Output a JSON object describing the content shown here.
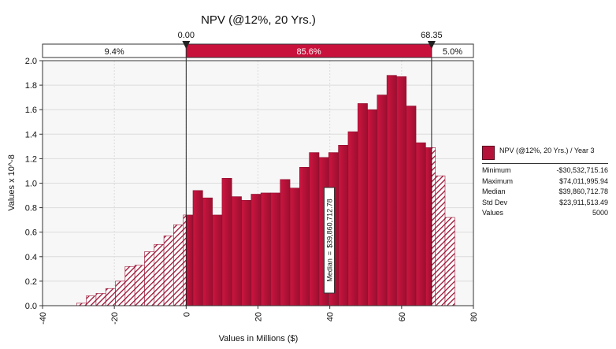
{
  "chart_data": {
    "type": "bar",
    "title": "NPV (@12%, 20 Yrs.)",
    "xlabel": "Values in Millions ($)",
    "ylabel": "Values x 10^-8",
    "xlim": [
      -40,
      80
    ],
    "ylim": [
      0,
      2.0
    ],
    "x_ticks": [
      "-40",
      "-20",
      "0",
      "20",
      "40",
      "60",
      "80"
    ],
    "y_ticks": [
      "0.0",
      "0.2",
      "0.4",
      "0.6",
      "0.8",
      "1.0",
      "1.2",
      "1.4",
      "1.6",
      "1.8",
      "2.0"
    ],
    "bin_width": 2.7,
    "bin_edges_start": -30.5,
    "values": [
      0.02,
      0.08,
      0.1,
      0.14,
      0.2,
      0.32,
      0.33,
      0.44,
      0.5,
      0.57,
      0.66,
      0.74,
      0.94,
      0.88,
      0.74,
      1.04,
      0.89,
      0.86,
      0.91,
      0.92,
      0.92,
      1.03,
      0.96,
      1.13,
      1.25,
      1.21,
      1.25,
      1.31,
      1.42,
      1.65,
      1.6,
      1.72,
      1.88,
      1.87,
      1.63,
      1.33,
      1.29,
      1.06,
      0.72
    ],
    "grid": true,
    "delimiters": {
      "left_value": "0.00",
      "right_value": "68.35",
      "left_x": 0.0,
      "right_x": 68.35,
      "left_pct": "9.4%",
      "mid_pct": "85.6%",
      "right_pct": "5.0%"
    },
    "marker": {
      "label": "Median",
      "separator": "=",
      "value": "$39,860,712.78",
      "x": 39.86
    },
    "colors": {
      "bar_fill": "#b5123a",
      "bar_dark": "#8c0e2c",
      "hatch": "#9a1032",
      "grid": "#dcdcdc",
      "plot_bg": "#f7f7f7"
    }
  },
  "legend": {
    "series_name": "NPV (@12%, 20 Yrs.) / Year 3",
    "stats": [
      {
        "label": "Minimum",
        "value": "-$30,532,715.16"
      },
      {
        "label": "Maximum",
        "value": "$74,011,995.94"
      },
      {
        "label": "Median",
        "value": "$39,860,712.78"
      },
      {
        "label": "Std Dev",
        "value": "$23,911,513.49"
      },
      {
        "label": "Values",
        "value": "5000"
      }
    ]
  }
}
